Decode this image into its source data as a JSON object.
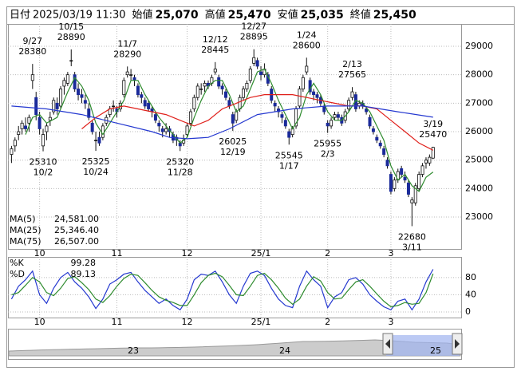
{
  "chart_data": {
    "type": "candlestick",
    "header": [
      {
        "label": "日付",
        "value": "2025/03/19 11:30",
        "color": "#000000"
      },
      {
        "label": "始値",
        "value": "25,070",
        "color": "#000000"
      },
      {
        "label": "高値",
        "value": "25,470",
        "color": "#e0201b"
      },
      {
        "label": "安値",
        "value": "25,035",
        "color": "#0a9a3a"
      },
      {
        "label": "終値",
        "value": "25,450",
        "color": "#000000"
      }
    ],
    "xlim": [
      -1,
      128
    ],
    "ylim": [
      21880,
      29785
    ],
    "yticks": [
      23000,
      24000,
      25000,
      26000,
      27000,
      28000,
      29000
    ],
    "months": [
      {
        "index": 8,
        "label": "10"
      },
      {
        "index": 30,
        "label": "11"
      },
      {
        "index": 50,
        "label": "12"
      },
      {
        "index": 71,
        "label": "25/1"
      },
      {
        "index": 90,
        "label": "2"
      },
      {
        "index": 108,
        "label": "3"
      }
    ],
    "up_color": "#ffffff",
    "down_color": "#1a2a9a",
    "ohlc": [
      [
        25200,
        25500,
        24900,
        25400
      ],
      [
        25500,
        25800,
        25300,
        25700
      ],
      [
        25900,
        26200,
        25700,
        26000
      ],
      [
        26100,
        26400,
        25900,
        26300
      ],
      [
        26200,
        26500,
        26000,
        26100
      ],
      [
        26300,
        26600,
        26000,
        26500
      ],
      [
        27800,
        28380,
        27500,
        28000
      ],
      [
        27200,
        27400,
        26400,
        26600
      ],
      [
        26500,
        26700,
        25900,
        26100
      ],
      [
        25500,
        26100,
        25310,
        25900
      ],
      [
        26000,
        26300,
        25700,
        26200
      ],
      [
        26400,
        26700,
        26200,
        26500
      ],
      [
        26700,
        27200,
        26600,
        27100
      ],
      [
        27000,
        27200,
        26600,
        26800
      ],
      [
        26900,
        27600,
        26800,
        27500
      ],
      [
        27600,
        27900,
        27300,
        27800
      ],
      [
        27700,
        28100,
        27600,
        28000
      ],
      [
        28500,
        28890,
        28300,
        28500
      ],
      [
        28000,
        28100,
        27400,
        27500
      ],
      [
        27500,
        27700,
        27100,
        27300
      ],
      [
        27300,
        27500,
        27000,
        27200
      ],
      [
        27100,
        27300,
        26800,
        27000
      ],
      [
        26800,
        27000,
        26400,
        26500
      ],
      [
        26300,
        26400,
        25900,
        26000
      ],
      [
        25700,
        26000,
        25325,
        25700
      ],
      [
        25800,
        26000,
        25500,
        25600
      ],
      [
        25800,
        26300,
        25700,
        26200
      ],
      [
        26300,
        26600,
        26200,
        26500
      ],
      [
        26600,
        26900,
        26500,
        26800
      ],
      [
        26900,
        27100,
        26700,
        26900
      ],
      [
        26800,
        26900,
        26500,
        26700
      ],
      [
        26800,
        27100,
        26700,
        27000
      ],
      [
        27300,
        27900,
        27200,
        27800
      ],
      [
        28000,
        28290,
        27900,
        28100
      ],
      [
        28000,
        28200,
        27800,
        28000
      ],
      [
        27900,
        28000,
        27600,
        27800
      ],
      [
        27600,
        27700,
        27200,
        27300
      ],
      [
        27300,
        27400,
        27000,
        27200
      ],
      [
        27100,
        27200,
        26800,
        26900
      ],
      [
        27000,
        27100,
        26700,
        26800
      ],
      [
        26800,
        26900,
        26500,
        26700
      ],
      [
        26600,
        26700,
        26300,
        26400
      ],
      [
        26300,
        26400,
        26000,
        26200
      ],
      [
        26100,
        26200,
        25800,
        26000
      ],
      [
        26000,
        26300,
        25900,
        26100
      ],
      [
        26100,
        26200,
        25800,
        26000
      ],
      [
        25900,
        26000,
        25600,
        25700
      ],
      [
        25800,
        25900,
        25500,
        25700
      ],
      [
        25600,
        25700,
        25320,
        25500
      ],
      [
        25600,
        25900,
        25500,
        25700
      ],
      [
        25900,
        26300,
        25800,
        26200
      ],
      [
        26300,
        26800,
        26200,
        26700
      ],
      [
        26800,
        27300,
        26700,
        27200
      ],
      [
        27200,
        27700,
        27100,
        27600
      ],
      [
        27500,
        27700,
        27300,
        27500
      ],
      [
        27600,
        27800,
        27400,
        27700
      ],
      [
        27700,
        27800,
        27500,
        27600
      ],
      [
        27700,
        28000,
        27600,
        27900
      ],
      [
        28100,
        28445,
        28000,
        28200
      ],
      [
        27900,
        28000,
        27500,
        27600
      ],
      [
        27600,
        27700,
        27300,
        27500
      ],
      [
        27400,
        27500,
        27100,
        27200
      ],
      [
        27100,
        27200,
        26800,
        26900
      ],
      [
        26600,
        26700,
        26025,
        26300
      ],
      [
        26400,
        26800,
        26300,
        26700
      ],
      [
        26800,
        27300,
        26700,
        27200
      ],
      [
        27200,
        27600,
        27100,
        27500
      ],
      [
        27500,
        27800,
        27400,
        27700
      ],
      [
        27800,
        28300,
        27700,
        28200
      ],
      [
        28400,
        28895,
        28300,
        28600
      ],
      [
        28500,
        28600,
        28200,
        28300
      ],
      [
        28100,
        28300,
        27800,
        28000
      ],
      [
        28000,
        28400,
        27900,
        28200
      ],
      [
        28000,
        28100,
        27600,
        27700
      ],
      [
        27500,
        27600,
        27000,
        27100
      ],
      [
        27000,
        27100,
        26700,
        26900
      ],
      [
        26800,
        26900,
        26500,
        26700
      ],
      [
        26600,
        26700,
        26300,
        26500
      ],
      [
        26400,
        26500,
        26100,
        26200
      ],
      [
        26000,
        26100,
        25545,
        25800
      ],
      [
        25900,
        26200,
        25800,
        26100
      ],
      [
        26200,
        26900,
        26100,
        26800
      ],
      [
        26900,
        27600,
        26800,
        27500
      ],
      [
        27500,
        28000,
        27400,
        27900
      ],
      [
        28100,
        28600,
        28000,
        28300
      ],
      [
        27800,
        27900,
        27300,
        27400
      ],
      [
        27400,
        27500,
        27100,
        27300
      ],
      [
        27300,
        27400,
        27000,
        27200
      ],
      [
        27200,
        27300,
        26900,
        27000
      ],
      [
        26900,
        27000,
        26600,
        26700
      ],
      [
        26300,
        26400,
        25955,
        26200
      ],
      [
        26200,
        26500,
        26100,
        26400
      ],
      [
        26500,
        26700,
        26400,
        26600
      ],
      [
        26600,
        26700,
        26400,
        26500
      ],
      [
        26500,
        26600,
        26200,
        26300
      ],
      [
        26400,
        26800,
        26300,
        26700
      ],
      [
        26800,
        27200,
        26700,
        27100
      ],
      [
        27200,
        27565,
        27100,
        27400
      ],
      [
        27300,
        27400,
        26700,
        26800
      ],
      [
        26900,
        27100,
        26800,
        27000
      ],
      [
        27000,
        27100,
        26800,
        26900
      ],
      [
        26800,
        26900,
        26600,
        26700
      ],
      [
        26500,
        26600,
        26100,
        26200
      ],
      [
        26100,
        26200,
        25900,
        26000
      ],
      [
        25800,
        25900,
        25600,
        25700
      ],
      [
        25600,
        25700,
        25400,
        25500
      ],
      [
        25400,
        25500,
        25100,
        25200
      ],
      [
        25000,
        25100,
        24700,
        24800
      ],
      [
        24500,
        24600,
        23800,
        23900
      ],
      [
        24000,
        24400,
        23900,
        24300
      ],
      [
        24300,
        24700,
        24200,
        24600
      ],
      [
        24700,
        24800,
        24400,
        24500
      ],
      [
        24400,
        24600,
        24200,
        24300
      ],
      [
        24200,
        24300,
        23700,
        23800
      ],
      [
        23500,
        23700,
        22680,
        23600
      ],
      [
        23500,
        24200,
        23400,
        24100
      ],
      [
        24000,
        24600,
        23900,
        24500
      ],
      [
        24500,
        24900,
        24400,
        24800
      ],
      [
        24900,
        25100,
        24700,
        25000
      ],
      [
        24900,
        25200,
        24800,
        25100
      ],
      [
        25070,
        25470,
        25035,
        25450
      ]
    ],
    "moving_averages": [
      {
        "name": "MA(5)",
        "last": "24,581.00",
        "color": "#2e8b2e",
        "x": [
          4,
          6,
          8,
          10,
          13,
          16,
          18,
          20,
          22,
          24,
          26,
          28,
          30,
          32,
          34,
          36,
          38,
          40,
          42,
          44,
          46,
          48,
          50,
          52,
          54,
          56,
          58,
          60,
          62,
          64,
          66,
          68,
          70,
          72,
          74,
          76,
          78,
          80,
          82,
          84,
          86,
          88,
          90,
          92,
          94,
          96,
          98,
          100,
          102,
          104,
          106,
          108,
          110,
          112,
          114,
          116,
          118,
          120
        ],
        "values": [
          25900,
          26500,
          26600,
          26300,
          26500,
          27400,
          27900,
          27600,
          27100,
          26300,
          25900,
          26300,
          26700,
          27100,
          27800,
          27800,
          27300,
          26900,
          26500,
          26200,
          25900,
          25600,
          25800,
          26500,
          27100,
          27600,
          27800,
          27800,
          27300,
          26700,
          26900,
          27500,
          28100,
          28200,
          27700,
          27100,
          26600,
          26100,
          26500,
          27300,
          27700,
          27300,
          26700,
          26400,
          26400,
          26700,
          27100,
          27000,
          26700,
          26200,
          25700,
          24800,
          24300,
          24500,
          24100,
          23900,
          24400,
          24581
        ]
      },
      {
        "name": "MA(25)",
        "last": "25,346.40",
        "color": "#e0201b",
        "x": [
          20,
          24,
          28,
          32,
          36,
          40,
          44,
          48,
          52,
          56,
          60,
          64,
          68,
          72,
          76,
          80,
          84,
          88,
          92,
          96,
          100,
          104,
          108,
          112,
          116,
          120
        ],
        "values": [
          26100,
          26500,
          26800,
          26900,
          26800,
          26700,
          26600,
          26400,
          26200,
          26400,
          26800,
          27000,
          27200,
          27300,
          27300,
          27300,
          27200,
          27100,
          27000,
          26900,
          26900,
          26800,
          26400,
          26000,
          25600,
          25346.4
        ]
      },
      {
        "name": "MA(75)",
        "last": "26,507.00",
        "color": "#2438d0",
        "x": [
          0,
          10,
          20,
          30,
          40,
          45,
          50,
          56,
          62,
          70,
          80,
          90,
          100,
          110,
          120
        ],
        "values": [
          26900,
          26800,
          26600,
          26300,
          26000,
          25800,
          25750,
          25800,
          26100,
          26600,
          26800,
          26900,
          26900,
          26700,
          26507
        ]
      }
    ],
    "annotations": [
      {
        "index": 6,
        "date": "9/27",
        "price": 28380,
        "pos": "above"
      },
      {
        "index": 9,
        "date": "10/2",
        "price": 25310,
        "pos": "below"
      },
      {
        "index": 17,
        "date": "10/15",
        "price": 28890,
        "pos": "above"
      },
      {
        "index": 24,
        "date": "10/24",
        "price": 25325,
        "pos": "below"
      },
      {
        "index": 33,
        "date": "11/7",
        "price": 28290,
        "pos": "above"
      },
      {
        "index": 48,
        "date": "11/28",
        "price": 25320,
        "pos": "below"
      },
      {
        "index": 58,
        "date": "12/12",
        "price": 28445,
        "pos": "above"
      },
      {
        "index": 63,
        "date": "12/19",
        "price": 26025,
        "pos": "below"
      },
      {
        "index": 69,
        "date": "12/27",
        "price": 28895,
        "pos": "above"
      },
      {
        "index": 79,
        "date": "1/17",
        "price": 25545,
        "pos": "below"
      },
      {
        "index": 84,
        "date": "1/24",
        "price": 28600,
        "pos": "above"
      },
      {
        "index": 90,
        "date": "2/3",
        "price": 25955,
        "pos": "below"
      },
      {
        "index": 97,
        "date": "2/13",
        "price": 27565,
        "pos": "above"
      },
      {
        "index": 114,
        "date": "3/11",
        "price": 22680,
        "pos": "below"
      },
      {
        "index": 120,
        "date": "3/19",
        "price": 25470,
        "pos": "above"
      }
    ],
    "stochastic": {
      "ylim": [
        -13,
        128
      ],
      "yticks": [
        0,
        40,
        80
      ],
      "x": [
        0,
        2,
        4,
        6,
        8,
        10,
        12,
        14,
        16,
        18,
        20,
        22,
        24,
        26,
        28,
        30,
        32,
        34,
        36,
        38,
        40,
        42,
        44,
        46,
        48,
        50,
        52,
        54,
        56,
        58,
        60,
        62,
        64,
        66,
        68,
        70,
        72,
        74,
        76,
        78,
        80,
        82,
        84,
        86,
        88,
        90,
        92,
        94,
        96,
        98,
        100,
        102,
        104,
        106,
        108,
        110,
        112,
        114,
        116,
        118,
        120
      ],
      "series": [
        {
          "name": "%K",
          "last": 99.28,
          "color": "#2438d0",
          "values": [
            30,
            60,
            75,
            95,
            40,
            20,
            55,
            80,
            92,
            70,
            55,
            35,
            8,
            30,
            65,
            75,
            88,
            92,
            70,
            50,
            35,
            20,
            30,
            15,
            5,
            30,
            75,
            88,
            85,
            95,
            70,
            40,
            20,
            60,
            90,
            95,
            85,
            55,
            30,
            15,
            10,
            60,
            95,
            75,
            60,
            10,
            35,
            45,
            75,
            80,
            65,
            40,
            25,
            12,
            5,
            25,
            30,
            5,
            30,
            70,
            99.28
          ]
        },
        {
          "name": "%D",
          "last": 89.13,
          "color": "#2e8b2e",
          "values": [
            40,
            45,
            62,
            80,
            70,
            45,
            38,
            55,
            78,
            82,
            68,
            52,
            30,
            22,
            38,
            60,
            78,
            88,
            85,
            68,
            50,
            35,
            27,
            22,
            15,
            15,
            40,
            68,
            85,
            90,
            82,
            62,
            40,
            38,
            60,
            85,
            90,
            75,
            55,
            32,
            18,
            30,
            60,
            82,
            72,
            45,
            30,
            32,
            52,
            70,
            75,
            60,
            42,
            25,
            12,
            15,
            22,
            18,
            20,
            45,
            89.13
          ]
        }
      ]
    },
    "navigator_labels": [
      "23",
      "24",
      "25"
    ]
  }
}
